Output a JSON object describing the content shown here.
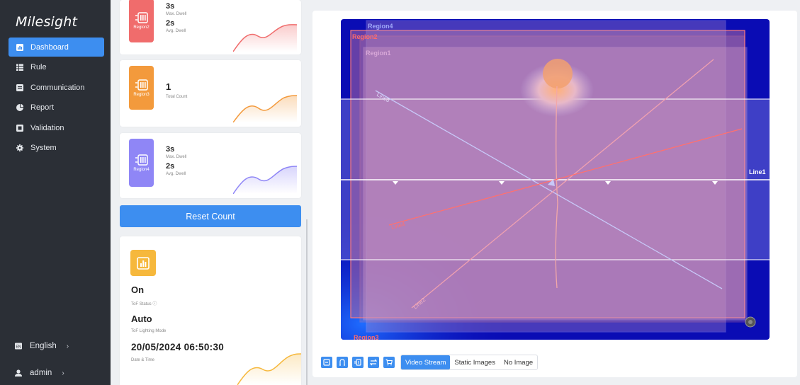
{
  "app": {
    "logo": "Milesight"
  },
  "sidebar": {
    "items": [
      {
        "label": "Dashboard",
        "icon": "dashboard-icon",
        "active": true
      },
      {
        "label": "Rule",
        "icon": "rule-icon"
      },
      {
        "label": "Communication",
        "icon": "communication-icon"
      },
      {
        "label": "Report",
        "icon": "report-icon"
      },
      {
        "label": "Validation",
        "icon": "validation-icon"
      },
      {
        "label": "System",
        "icon": "system-icon"
      }
    ],
    "language": "English",
    "user": "admin",
    "chevron": "›"
  },
  "cards": {
    "region2": {
      "badge": "Region2",
      "v1": "3s",
      "l1": "Max. Dwell",
      "v2": "2s",
      "l2": "Avg. Dwell",
      "color": "#f06c6c"
    },
    "region3": {
      "badge": "Region3",
      "v1": "1",
      "l1": "Total Count",
      "color": "#f39a3c"
    },
    "region4": {
      "badge": "Region4",
      "v1": "3s",
      "l1": "Max. Dwell",
      "v2": "2s",
      "l2": "Avg. Dwell",
      "color": "#8f86f6"
    },
    "reset_label": "Reset Count",
    "status": {
      "tof_status_value": "On",
      "tof_status_label": "ToF Status ⓘ",
      "lighting_value": "Auto",
      "lighting_label": "ToF Lighting Mode",
      "datetime_value": "20/05/2024 06:50:30",
      "datetime_label": "Date & Time",
      "icon_color": "#f6b83c"
    }
  },
  "canvas": {
    "labels": {
      "region4": "Region4",
      "region2": "Region2",
      "region1": "Region1",
      "region3": "Region3",
      "line1": "Line1",
      "line2": "Line2",
      "line3": "Line3",
      "line4": "Line4"
    }
  },
  "toolbar": {
    "icons": [
      "region-icon",
      "line-icon",
      "clear-icon",
      "swap-icon",
      "cart-icon"
    ],
    "modes": [
      "Video Stream",
      "Static Images",
      "No Image"
    ],
    "active_mode": "Video Stream"
  }
}
